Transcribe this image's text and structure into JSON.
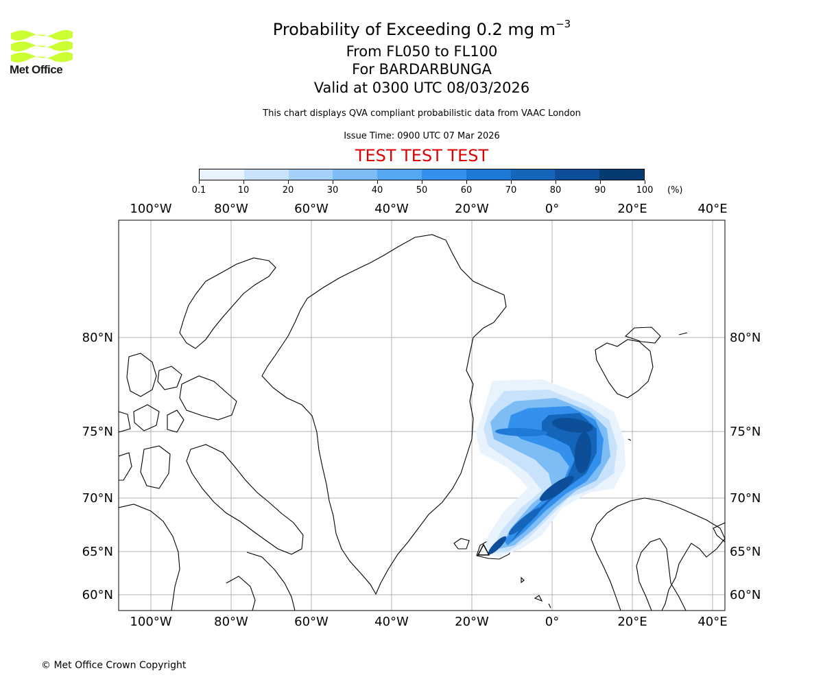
{
  "header": {
    "title_prefix": "Probability of Exceeding 0.2 mg m",
    "title_exponent": "−3",
    "subtitle_levels": "From FL050 to FL100",
    "subtitle_volcano": "For BARDARBUNGA",
    "subtitle_valid": "Valid at 0300 UTC 08/03/2026",
    "note_source": "This chart displays QVA compliant probabilistic data from VAAC London",
    "note_issue": "Issue Time: 0900 UTC 07 Mar 2026",
    "test_banner": "TEST TEST TEST",
    "test_color": "#dd0000"
  },
  "logo": {
    "text": "Met Office",
    "icon": "met-office-wave-logo",
    "color": "#ccff33"
  },
  "colorbar": {
    "unit_label": "(%)",
    "tick_labels": [
      "0.1",
      "10",
      "20",
      "30",
      "40",
      "50",
      "60",
      "70",
      "80",
      "90",
      "100"
    ],
    "colors": [
      "#e8f3fd",
      "#c8e2fb",
      "#a5d0f8",
      "#7dbcf5",
      "#56a7f1",
      "#3390ec",
      "#1f7ad6",
      "#1565bb",
      "#0c4f98",
      "#063a73",
      "#022b56"
    ]
  },
  "map": {
    "projection_note": "",
    "lon_labels": [
      "100°W",
      "80°W",
      "60°W",
      "40°W",
      "20°W",
      "0°",
      "20°E",
      "40°E"
    ],
    "lat_labels": [
      "80°N",
      "75°N",
      "70°N",
      "65°N",
      "60°N"
    ],
    "grid": true,
    "plume_color_low": "#cfe6fb",
    "plume_color_high": "#05376b"
  },
  "footer": {
    "copyright": "© Met Office Crown Copyright"
  }
}
